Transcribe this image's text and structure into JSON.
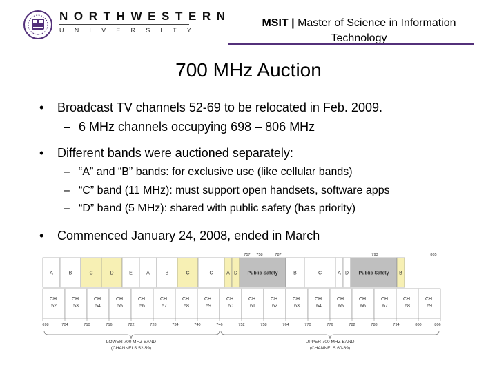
{
  "header": {
    "logo_line1": "NORTHWESTERN",
    "logo_line2": "UNIVERSITY",
    "program_abbrev": "MSIT",
    "separator": "|",
    "program_name_line1": "Master of Science in Information",
    "program_name_line2": "Technology",
    "accent_color": "#53307a"
  },
  "slide": {
    "title": "700 MHz Auction",
    "bullets": [
      {
        "text": "Broadcast TV channels 52-69 to be relocated in Feb. 2009.",
        "subitems": [
          "6 MHz channels occupying 698 – 806 MHz"
        ]
      },
      {
        "text": "Different bands were auctioned separately:",
        "subitems": [
          "“A” and “B” bands: for exclusive use (like cellular bands)",
          "“C” band (11 MHz): must support open handsets, software apps",
          "“D” band (5 MHz): shared with public safety (has priority)"
        ]
      },
      {
        "text": "Commenced January 24, 2008, ended in March",
        "subitems": []
      }
    ]
  },
  "band_plan": {
    "band_row": [
      {
        "label": "A",
        "fill": "white"
      },
      {
        "label": "B",
        "fill": "white"
      },
      {
        "label": "C",
        "fill": "yellow"
      },
      {
        "label": "D",
        "fill": "yellow"
      },
      {
        "label": "E",
        "fill": "white"
      },
      {
        "label": "A",
        "fill": "white"
      },
      {
        "label": "B",
        "fill": "white"
      },
      {
        "label": "C",
        "fill": "yellow"
      },
      {
        "label": "C",
        "fill": "white"
      },
      {
        "label": "A",
        "fill": "yellow"
      },
      {
        "label": "D",
        "fill": "yellow"
      },
      {
        "label": "Public Safety",
        "fill": "gray"
      },
      {
        "label": "B",
        "fill": "white"
      },
      {
        "label": "C",
        "fill": "white"
      },
      {
        "label": "A",
        "fill": "white"
      },
      {
        "label": "D",
        "fill": "white"
      },
      {
        "label": "Public Safety",
        "fill": "gray"
      },
      {
        "label": "B",
        "fill": "yellow"
      }
    ],
    "channel_prefix": "CH.",
    "channels": [
      "52",
      "53",
      "54",
      "55",
      "56",
      "57",
      "58",
      "59",
      "60",
      "61",
      "62",
      "63",
      "64",
      "65",
      "66",
      "67",
      "68",
      "69"
    ],
    "freq_bottom": [
      "698",
      "704",
      "710",
      "716",
      "722",
      "728",
      "734",
      "740",
      "746",
      "752",
      "758",
      "764",
      "770",
      "776",
      "782",
      "788",
      "794",
      "800",
      "806"
    ],
    "freq_top": [
      "757",
      "758",
      "787",
      "793",
      "805"
    ],
    "lower_band_line1": "Lower 700 MHz Band",
    "lower_band_line2": "(Channels 52-59)",
    "upper_band_line1": "Upper 700 MHz Band",
    "upper_band_line2": "(Channels 60-69)",
    "colors": {
      "yellow": "#f7f0b4",
      "gray": "#bfbfbf",
      "white": "#ffffff",
      "grid": "#8a8a8a"
    }
  }
}
